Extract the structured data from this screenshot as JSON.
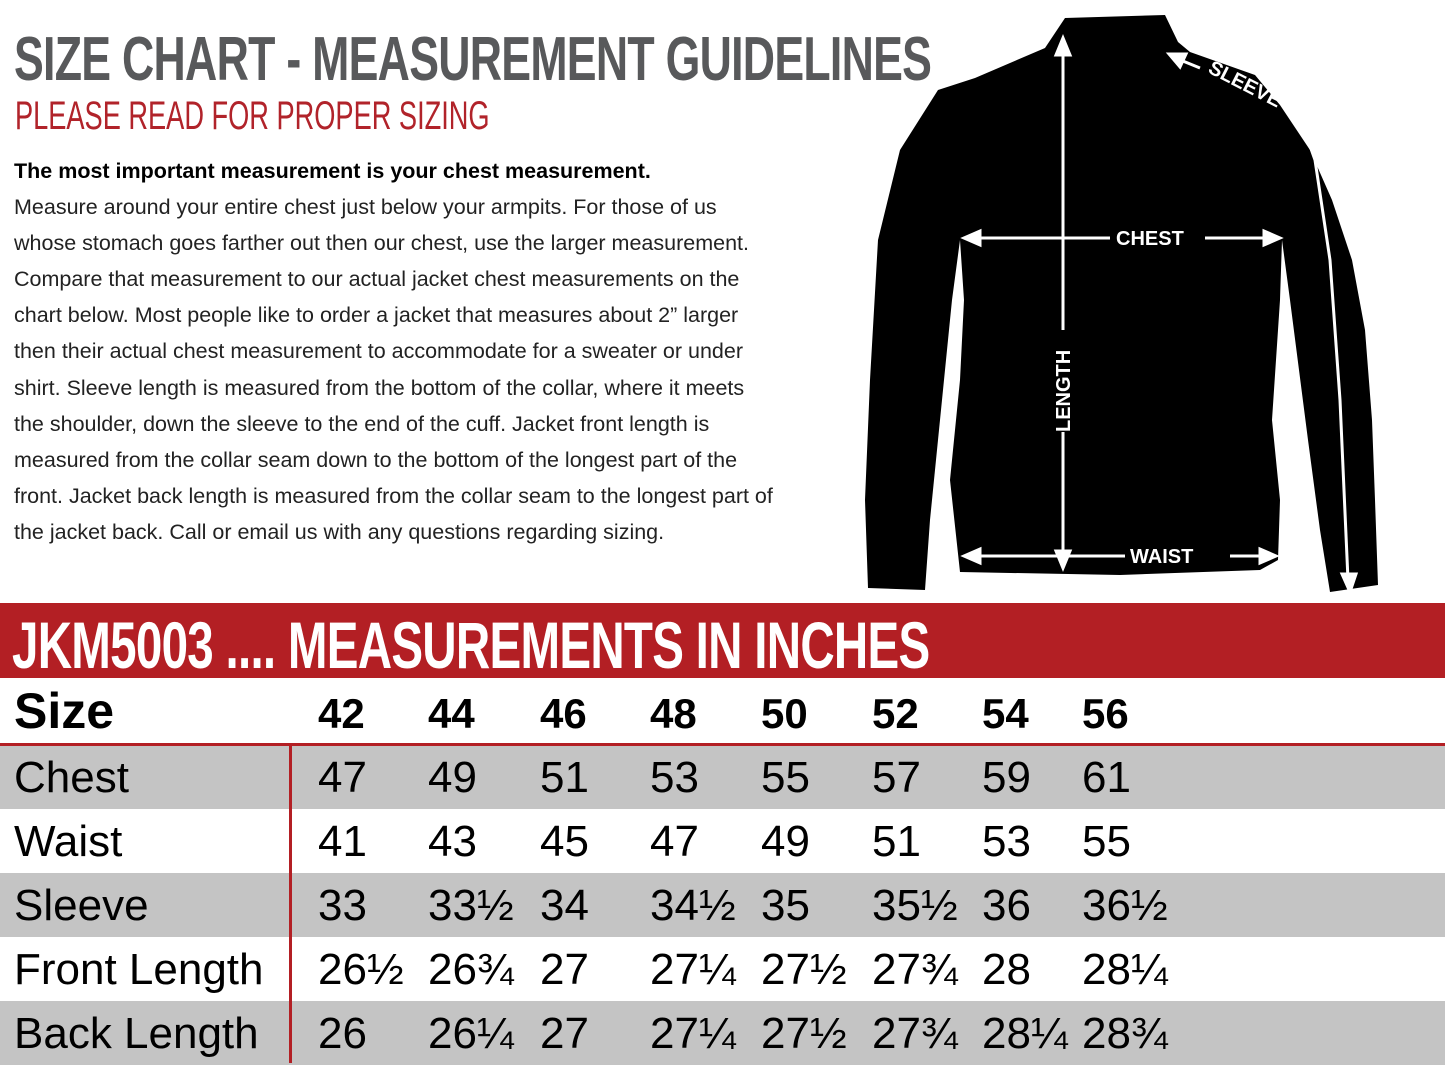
{
  "header": {
    "title": "SIZE CHART - MEASUREMENT GUIDELINES",
    "subtitle": "PLEASE READ FOR PROPER SIZING",
    "intro_bold": "The most important measurement is your chest measurement.",
    "intro_body": "Measure around your entire chest just below your armpits.  For those of us whose stomach goes farther out then our chest, use the larger measurement. Compare that measurement to our actual jacket chest measurements on the chart below. Most people like to order a jacket that measures about 2” larger then their actual chest measurement to accommodate for a sweater or under shirt. Sleeve length is measured from the bottom of the collar, where it meets the shoulder, down the sleeve to the end of the cuff.  Jacket front length is measured from the collar seam down to the bottom of the longest part of the front. Jacket back length is measured from the collar seam to the longest part of the jacket back.  Call or email us with any questions regarding sizing."
  },
  "diagram": {
    "labels": {
      "chest": "CHEST",
      "waist": "WAIST",
      "length": "LENGTH",
      "sleeve": "SLEEVE"
    }
  },
  "band": {
    "title": "JKM5003 .... MEASUREMENTS IN INCHES"
  },
  "table": {
    "header": {
      "label": "Size",
      "values": [
        "42",
        "44",
        "46",
        "48",
        "50",
        "52",
        "54",
        "56"
      ]
    },
    "rows": [
      {
        "label": "Chest",
        "values": [
          "47",
          "49",
          "51",
          "53",
          "55",
          "57",
          "59",
          "61"
        ]
      },
      {
        "label": "Waist",
        "values": [
          "41",
          "43",
          "45",
          "47",
          "49",
          "51",
          "53",
          "55"
        ]
      },
      {
        "label": "Sleeve",
        "values": [
          "33",
          "33½",
          "34",
          "34½",
          "35",
          "35½",
          "36",
          "36½"
        ]
      },
      {
        "label": "Front Length",
        "values": [
          "26½",
          "26¾",
          "27",
          "27¼",
          "27½",
          "27¾",
          "28",
          "28¼"
        ]
      },
      {
        "label": "Back Length",
        "values": [
          "26",
          "26¼",
          "27",
          "27¼",
          "27½",
          "27¾",
          "28¼",
          "28¾"
        ]
      }
    ]
  },
  "colors": {
    "accent_red": "#b31f24",
    "title_gray": "#58595b",
    "row_gray": "#c4c4c4"
  }
}
